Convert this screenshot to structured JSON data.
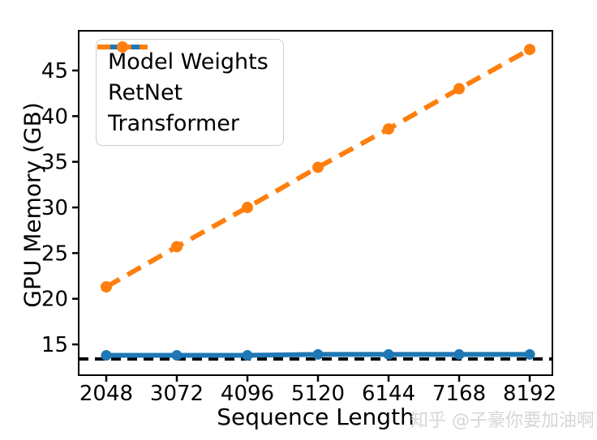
{
  "chart_data": {
    "type": "line",
    "title": "",
    "xlabel": "Sequence Length",
    "ylabel": "GPU Memory (GB)",
    "x": [
      2048,
      3072,
      4096,
      5120,
      6144,
      7168,
      8192
    ],
    "x_ticks": [
      "2048",
      "3072",
      "4096",
      "5120",
      "6144",
      "7168",
      "8192"
    ],
    "y_ticks": [
      15,
      20,
      25,
      30,
      35,
      40,
      45
    ],
    "xlim": [
      1648,
      8521
    ],
    "ylim": [
      11.63,
      49.35
    ],
    "grid": false,
    "legend_position": "upper-left",
    "series": [
      {
        "name": "Model Weights",
        "type": "hline",
        "value": 13.4,
        "color": "#000000",
        "style": "dashed",
        "line_width": 4,
        "marker": false
      },
      {
        "name": "RetNet",
        "type": "line",
        "values": [
          13.8,
          13.8,
          13.8,
          13.9,
          13.9,
          13.9,
          13.9
        ],
        "color": "#1f77b4",
        "style": "solid",
        "line_width": 6,
        "marker": true,
        "marker_size": 6.5
      },
      {
        "name": "Transformer",
        "type": "line",
        "values": [
          21.3,
          25.7,
          30.0,
          34.4,
          38.6,
          43.0,
          47.3
        ],
        "color": "#ff7f0e",
        "style": "dashed",
        "line_width": 6,
        "marker": true,
        "marker_size": 7
      }
    ]
  },
  "watermark": {
    "text": "知乎 @子豪你要加油啊",
    "color": "#d6d6d6"
  }
}
